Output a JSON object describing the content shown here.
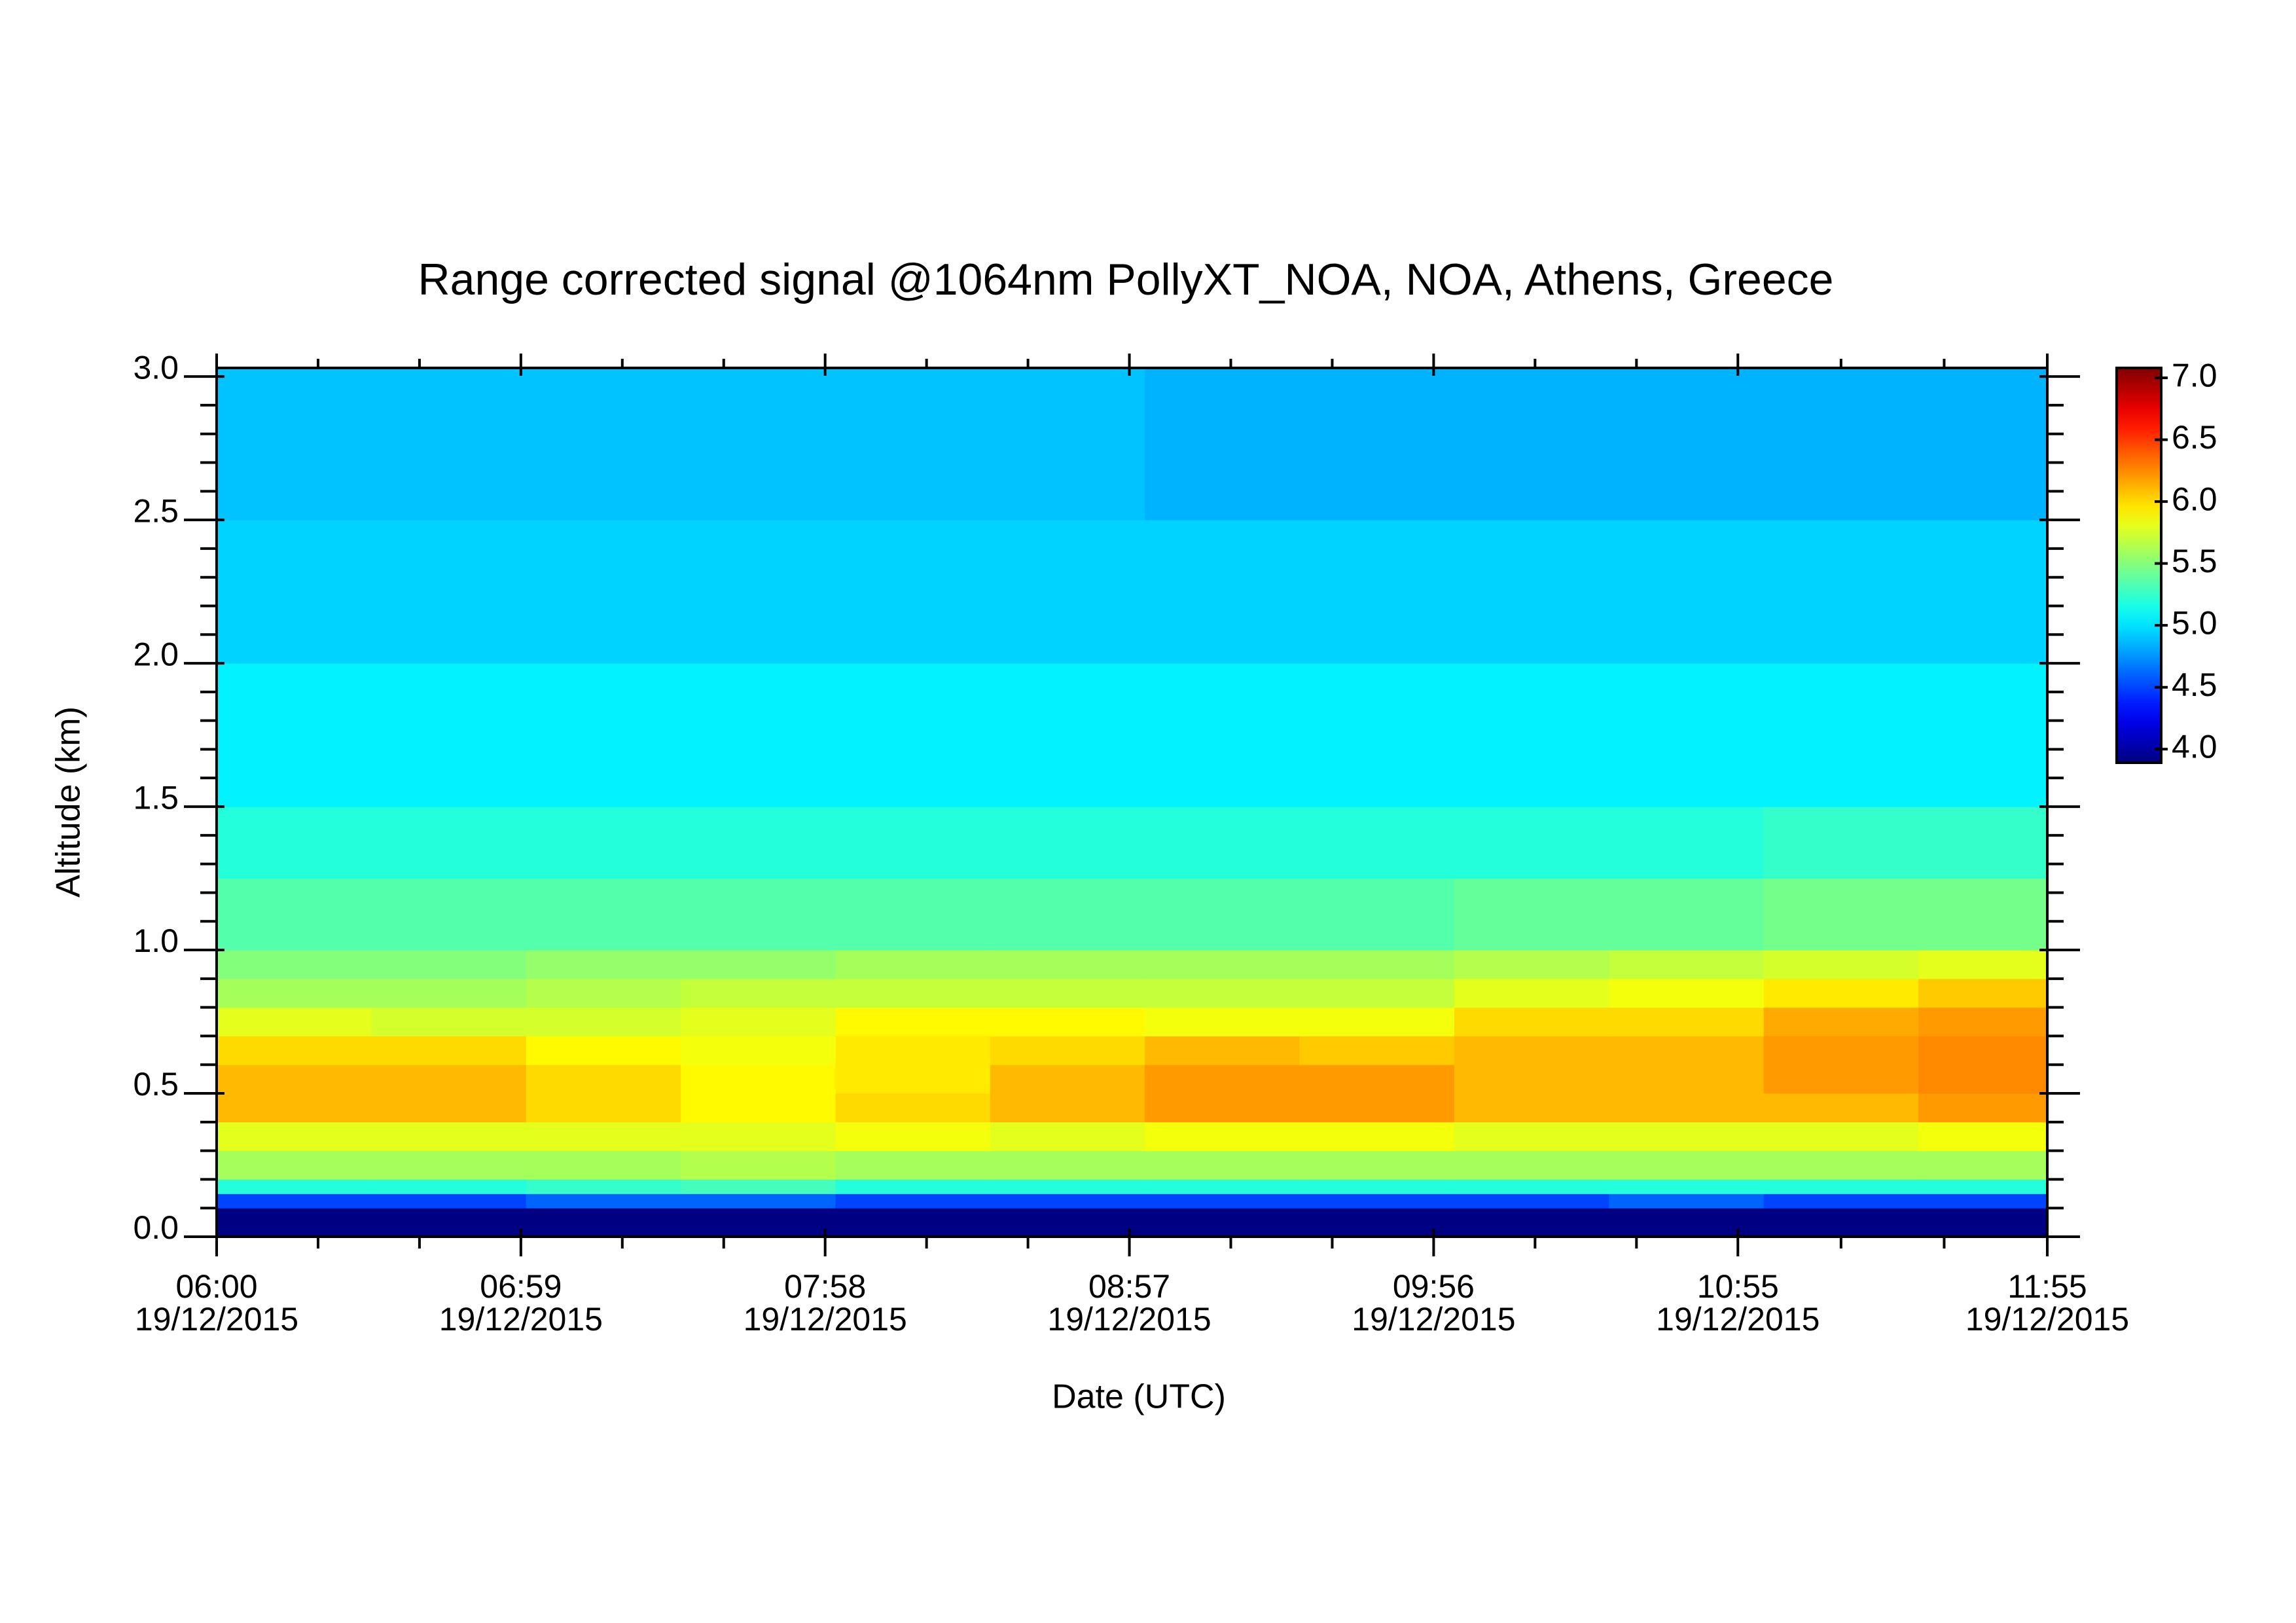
{
  "chart_data": {
    "type": "heatmap",
    "title": "Range corrected signal @1064nm  PollyXT_NOA, NOA, Athens, Greece",
    "x_label": "Date (UTC)",
    "y_label": "Altitude (km)",
    "colormap": "jet",
    "x_edges": [
      "06:00",
      "06:30",
      "07:00",
      "07:30",
      "08:00",
      "08:30",
      "09:00",
      "09:30",
      "10:00",
      "10:30",
      "11:00",
      "11:30",
      "11:55"
    ],
    "y_edges": [
      0,
      0.1,
      0.15,
      0.2,
      0.3,
      0.4,
      0.5,
      0.6,
      0.7,
      0.8,
      0.9,
      1.0,
      1.25,
      1.5,
      2.0,
      2.5,
      3.03
    ],
    "z": [
      [
        3.9,
        3.9,
        3.9,
        3.9,
        3.9,
        3.9,
        3.9,
        3.9,
        3.9,
        3.9,
        3.9,
        3.9
      ],
      [
        4.5,
        4.5,
        4.6,
        4.6,
        4.5,
        4.5,
        4.5,
        4.5,
        4.5,
        4.6,
        4.5,
        4.5
      ],
      [
        5.2,
        5.2,
        5.25,
        5.3,
        5.2,
        5.2,
        5.2,
        5.2,
        5.2,
        5.2,
        5.2,
        5.2
      ],
      [
        5.6,
        5.6,
        5.6,
        5.65,
        5.6,
        5.6,
        5.6,
        5.6,
        5.6,
        5.6,
        5.6,
        5.6
      ],
      [
        5.8,
        5.8,
        5.8,
        5.8,
        5.85,
        5.8,
        5.85,
        5.85,
        5.8,
        5.8,
        5.8,
        5.85
      ],
      [
        6.1,
        6.1,
        6.0,
        5.9,
        6.0,
        6.1,
        6.2,
        6.2,
        6.1,
        6.1,
        6.1,
        6.2
      ],
      [
        6.1,
        6.1,
        6.0,
        5.9,
        5.95,
        6.1,
        6.2,
        6.2,
        6.1,
        6.1,
        6.2,
        6.25
      ],
      [
        6.0,
        6.0,
        5.9,
        5.85,
        5.95,
        6.0,
        6.1,
        6.05,
        6.1,
        6.1,
        6.2,
        6.25
      ],
      [
        5.8,
        5.75,
        5.75,
        5.8,
        5.9,
        5.9,
        5.85,
        5.85,
        6.0,
        6.0,
        6.15,
        6.2
      ],
      [
        5.6,
        5.6,
        5.65,
        5.7,
        5.7,
        5.7,
        5.7,
        5.7,
        5.8,
        5.85,
        5.95,
        6.05
      ],
      [
        5.5,
        5.5,
        5.55,
        5.55,
        5.6,
        5.6,
        5.6,
        5.6,
        5.65,
        5.7,
        5.75,
        5.8
      ],
      [
        5.35,
        5.35,
        5.35,
        5.35,
        5.35,
        5.35,
        5.35,
        5.35,
        5.4,
        5.4,
        5.45,
        5.45
      ],
      [
        5.2,
        5.2,
        5.2,
        5.2,
        5.2,
        5.2,
        5.2,
        5.2,
        5.2,
        5.2,
        5.25,
        5.25
      ],
      [
        5.05,
        5.05,
        5.05,
        5.05,
        5.05,
        5.05,
        5.05,
        5.05,
        5.05,
        5.05,
        5.05,
        5.05
      ],
      [
        4.95,
        4.95,
        4.95,
        4.95,
        4.95,
        4.95,
        4.95,
        4.95,
        4.95,
        4.95,
        4.95,
        4.95
      ],
      [
        4.9,
        4.9,
        4.9,
        4.9,
        4.9,
        4.9,
        4.85,
        4.85,
        4.85,
        4.85,
        4.85,
        4.85
      ]
    ],
    "xlim": [
      "06:00",
      "11:55"
    ],
    "xticks": [
      {
        "value": "06:00",
        "label": [
          "06:00",
          "19/12/2015"
        ]
      },
      {
        "value": "06:59",
        "label": [
          "06:59",
          "19/12/2015"
        ]
      },
      {
        "value": "07:58",
        "label": [
          "07:58",
          "19/12/2015"
        ]
      },
      {
        "value": "08:57",
        "label": [
          "08:57",
          "19/12/2015"
        ]
      },
      {
        "value": "09:56",
        "label": [
          "09:56",
          "19/12/2015"
        ]
      },
      {
        "value": "10:55",
        "label": [
          "10:55",
          "19/12/2015"
        ]
      },
      {
        "value": "11:55",
        "label": [
          "11:55",
          "19/12/2015"
        ]
      }
    ],
    "ylim": [
      0,
      3.03
    ],
    "yticks": [
      {
        "value": 0,
        "label": "0.0"
      },
      0.5,
      {
        "value": 1,
        "label": "1.0"
      },
      1.5,
      {
        "value": 2,
        "label": "2.0"
      },
      2.5,
      {
        "value": 3,
        "label": "3.0"
      }
    ],
    "zlim": [
      3.89,
      7.08
    ],
    "zticks": [
      {
        "value": 4,
        "label": "4.0"
      },
      4.5,
      {
        "value": 5,
        "label": "5.0"
      },
      5.5,
      {
        "value": 6,
        "label": "6.0"
      },
      6.5,
      {
        "value": 7,
        "label": "7.0"
      }
    ]
  }
}
